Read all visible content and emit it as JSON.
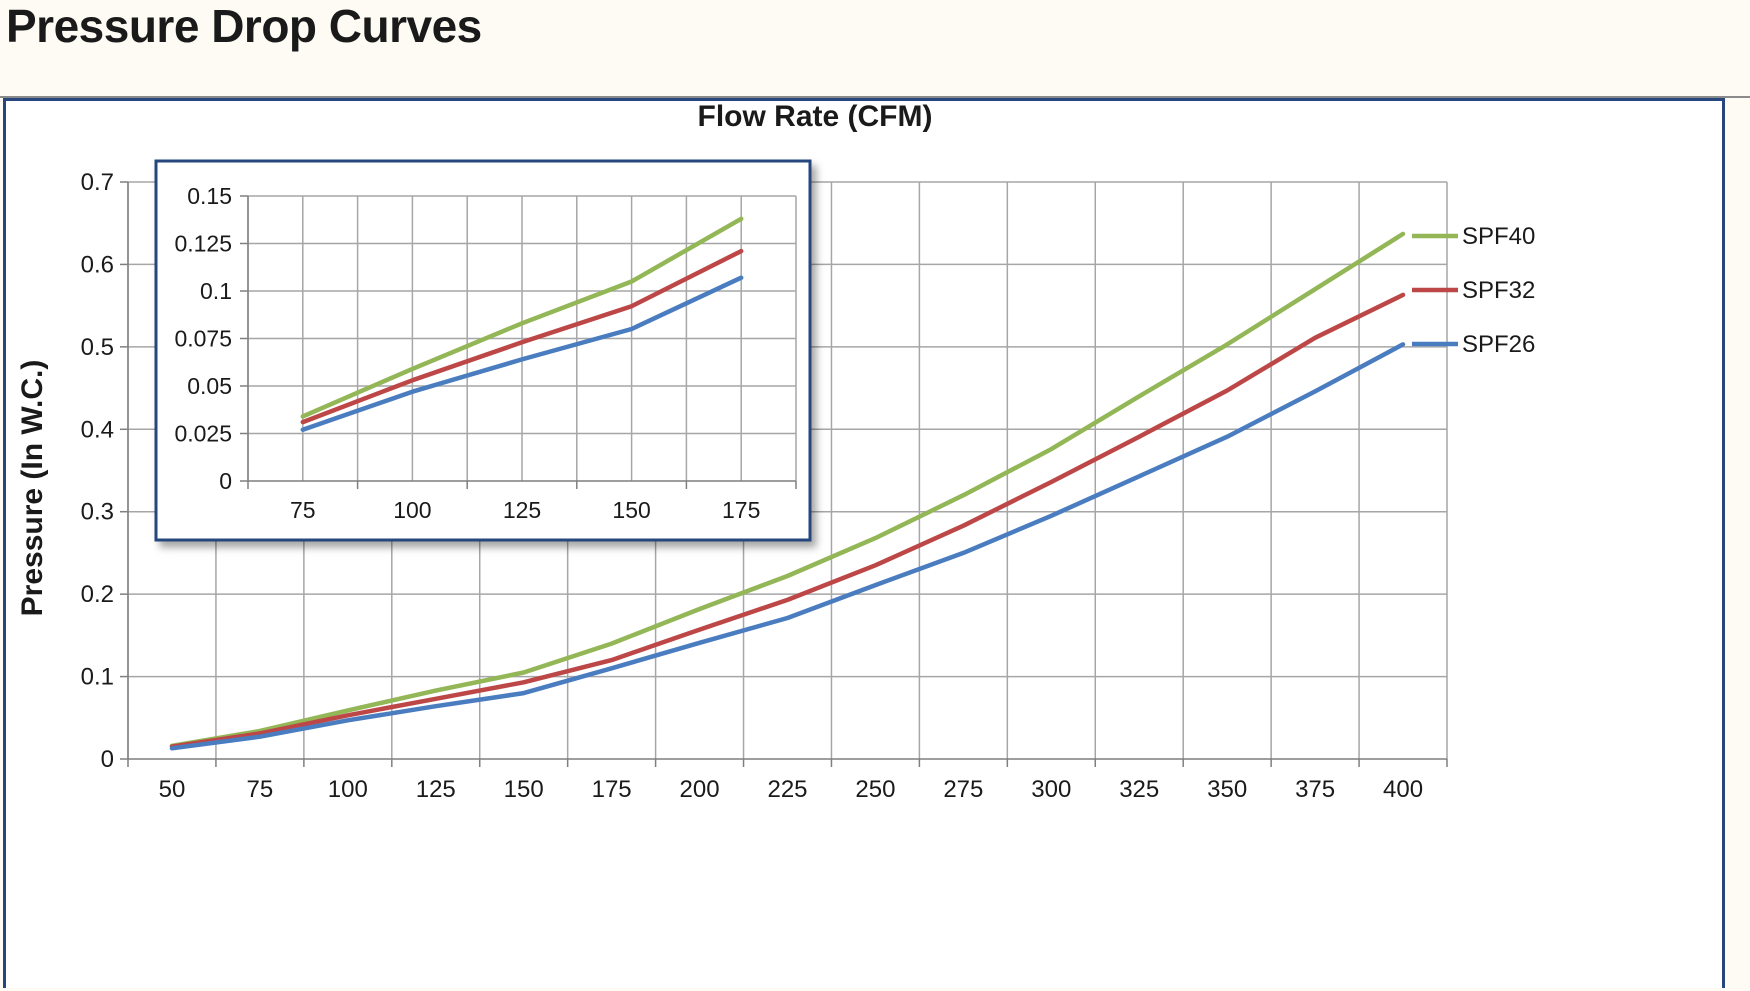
{
  "page": {
    "title": "Pressure Drop Curves"
  },
  "colors": {
    "SPF40": "#93b656",
    "SPF32": "#bd4747",
    "SPF26": "#4a7cc0",
    "frame": "#27467e",
    "grid": "#a6a6a6"
  },
  "chart_data": [
    {
      "type": "line",
      "title": "Flow Rate (CFM)",
      "xlabel": "",
      "ylabel": "Pressure (In W.C.)",
      "x": [
        50,
        75,
        100,
        125,
        150,
        175,
        200,
        225,
        250,
        275,
        300,
        325,
        350,
        375,
        400
      ],
      "x_tick_labels": [
        "50",
        "75",
        "100",
        "125",
        "150",
        "175",
        "200",
        "225",
        "250",
        "275",
        "300",
        "325",
        "350",
        "375",
        "400"
      ],
      "ylim": [
        0,
        0.7
      ],
      "y_ticks": [
        0,
        0.1,
        0.2,
        0.3,
        0.4,
        0.5,
        0.6,
        0.7
      ],
      "y_tick_labels": [
        "0",
        "0.1",
        "0.2",
        "0.3",
        "0.4",
        "0.5",
        "0.6",
        "0.7"
      ],
      "grid": true,
      "legend": "right",
      "series": [
        {
          "name": "SPF40",
          "values": [
            0.016,
            0.034,
            0.059,
            0.083,
            0.105,
            0.14,
            0.182,
            0.222,
            0.268,
            0.32,
            0.376,
            0.44,
            0.503,
            0.57,
            0.637
          ]
        },
        {
          "name": "SPF32",
          "values": [
            0.015,
            0.031,
            0.053,
            0.073,
            0.093,
            0.12,
            0.157,
            0.193,
            0.235,
            0.283,
            0.336,
            0.391,
            0.447,
            0.511,
            0.563
          ]
        },
        {
          "name": "SPF26",
          "values": [
            0.013,
            0.027,
            0.047,
            0.064,
            0.08,
            0.11,
            0.141,
            0.171,
            0.211,
            0.25,
            0.295,
            0.343,
            0.391,
            0.446,
            0.503
          ]
        }
      ]
    },
    {
      "type": "line",
      "title": "",
      "xlabel": "",
      "ylabel": "",
      "x": [
        75,
        100,
        125,
        150,
        175
      ],
      "x_tick_labels": [
        "75",
        "100",
        "125",
        "150",
        "175"
      ],
      "ylim": [
        0,
        0.15
      ],
      "y_ticks": [
        0,
        0.025,
        0.05,
        0.075,
        0.1,
        0.125,
        0.15
      ],
      "y_tick_labels": [
        "0",
        "0.025",
        "0.05",
        "0.075",
        "0.1",
        "0.125",
        "0.15"
      ],
      "grid": true,
      "series": [
        {
          "name": "SPF40",
          "values": [
            0.034,
            0.059,
            0.083,
            0.105,
            0.138
          ]
        },
        {
          "name": "SPF32",
          "values": [
            0.031,
            0.053,
            0.073,
            0.092,
            0.121
          ]
        },
        {
          "name": "SPF26",
          "values": [
            0.027,
            0.047,
            0.064,
            0.08,
            0.107
          ]
        }
      ]
    }
  ]
}
